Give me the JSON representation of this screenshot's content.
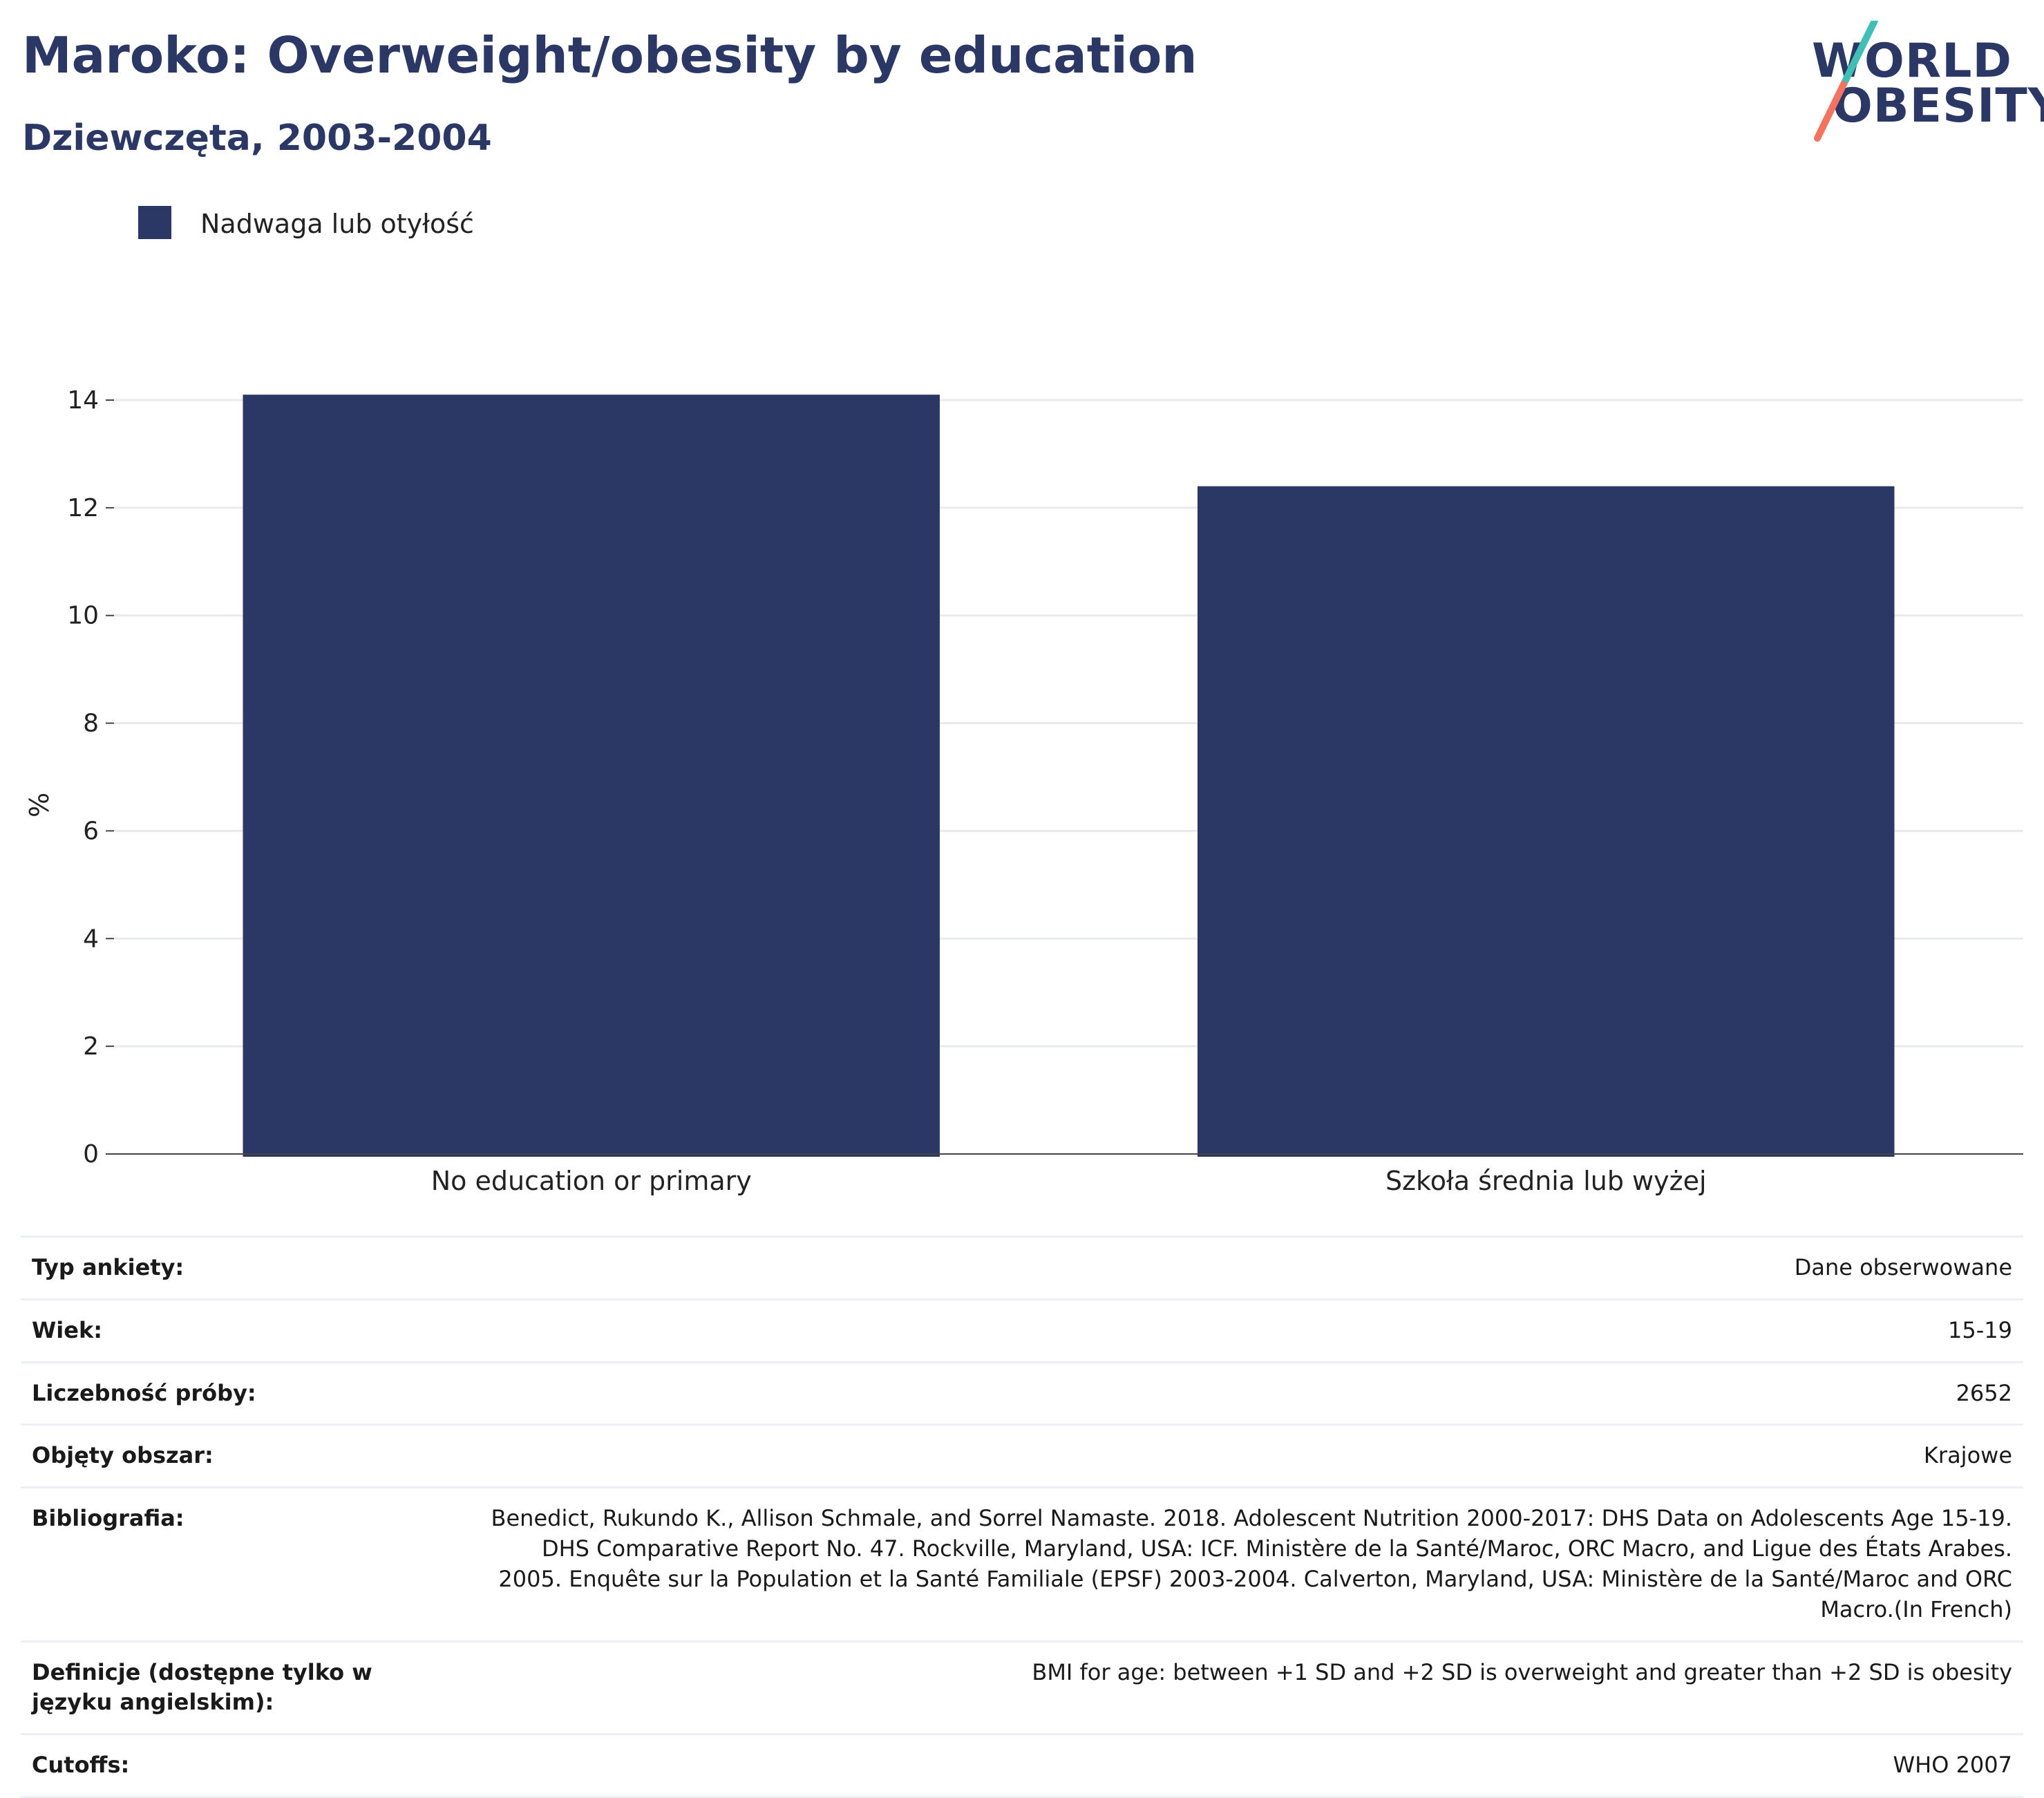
{
  "header": {
    "title": "Maroko: Overweight/obesity by education",
    "subtitle": "Dziewczęta, 2003-2004"
  },
  "logo": {
    "line1": "WORLD",
    "line2": "OBESITY",
    "slash_colors": [
      "#3fbfb5",
      "#f2735f"
    ]
  },
  "legend": {
    "label": "Nadwaga lub otyłość",
    "color": "#2b3764"
  },
  "chart_data": {
    "type": "bar",
    "categories": [
      "No education or primary",
      "Szkoła średnia lub wyżej"
    ],
    "series": [
      {
        "name": "Nadwaga lub otyłość",
        "values": [
          14.1,
          12.4
        ],
        "color": "#2b3764"
      }
    ],
    "ylabel": "%",
    "xlabel": "",
    "ylim": [
      0,
      14.5
    ],
    "yticks": [
      0,
      2,
      4,
      6,
      8,
      10,
      12,
      14
    ],
    "grid": true,
    "legend_position": "top-left"
  },
  "info": {
    "rows": [
      {
        "label": "Typ ankiety:",
        "value": "Dane obserwowane"
      },
      {
        "label": "Wiek:",
        "value": "15-19"
      },
      {
        "label": "Liczebność próby:",
        "value": "2652"
      },
      {
        "label": "Objęty obszar:",
        "value": "Krajowe"
      },
      {
        "label": "Bibliografia:",
        "value": "Benedict, Rukundo K., Allison Schmale, and Sorrel Namaste. 2018. Adolescent Nutrition 2000-2017: DHS Data on Adolescents Age 15-19. DHS Comparative Report No. 47. Rockville, Maryland, USA: ICF. Ministère de la Santé/Maroc, ORC Macro, and Ligue des États Arabes. 2005. Enquête sur la Population et la Santé Familiale (EPSF) 2003-2004. Calverton, Maryland, USA: Ministère de la Santé/Maroc and ORC Macro.(In French)"
      },
      {
        "label": "Definicje (dostępne tylko w języku angielskim):",
        "value": "BMI for age: between +1 SD and +2 SD is overweight and greater than +2 SD is obesity"
      },
      {
        "label": "Cutoffs:",
        "value": "WHO 2007"
      }
    ]
  }
}
